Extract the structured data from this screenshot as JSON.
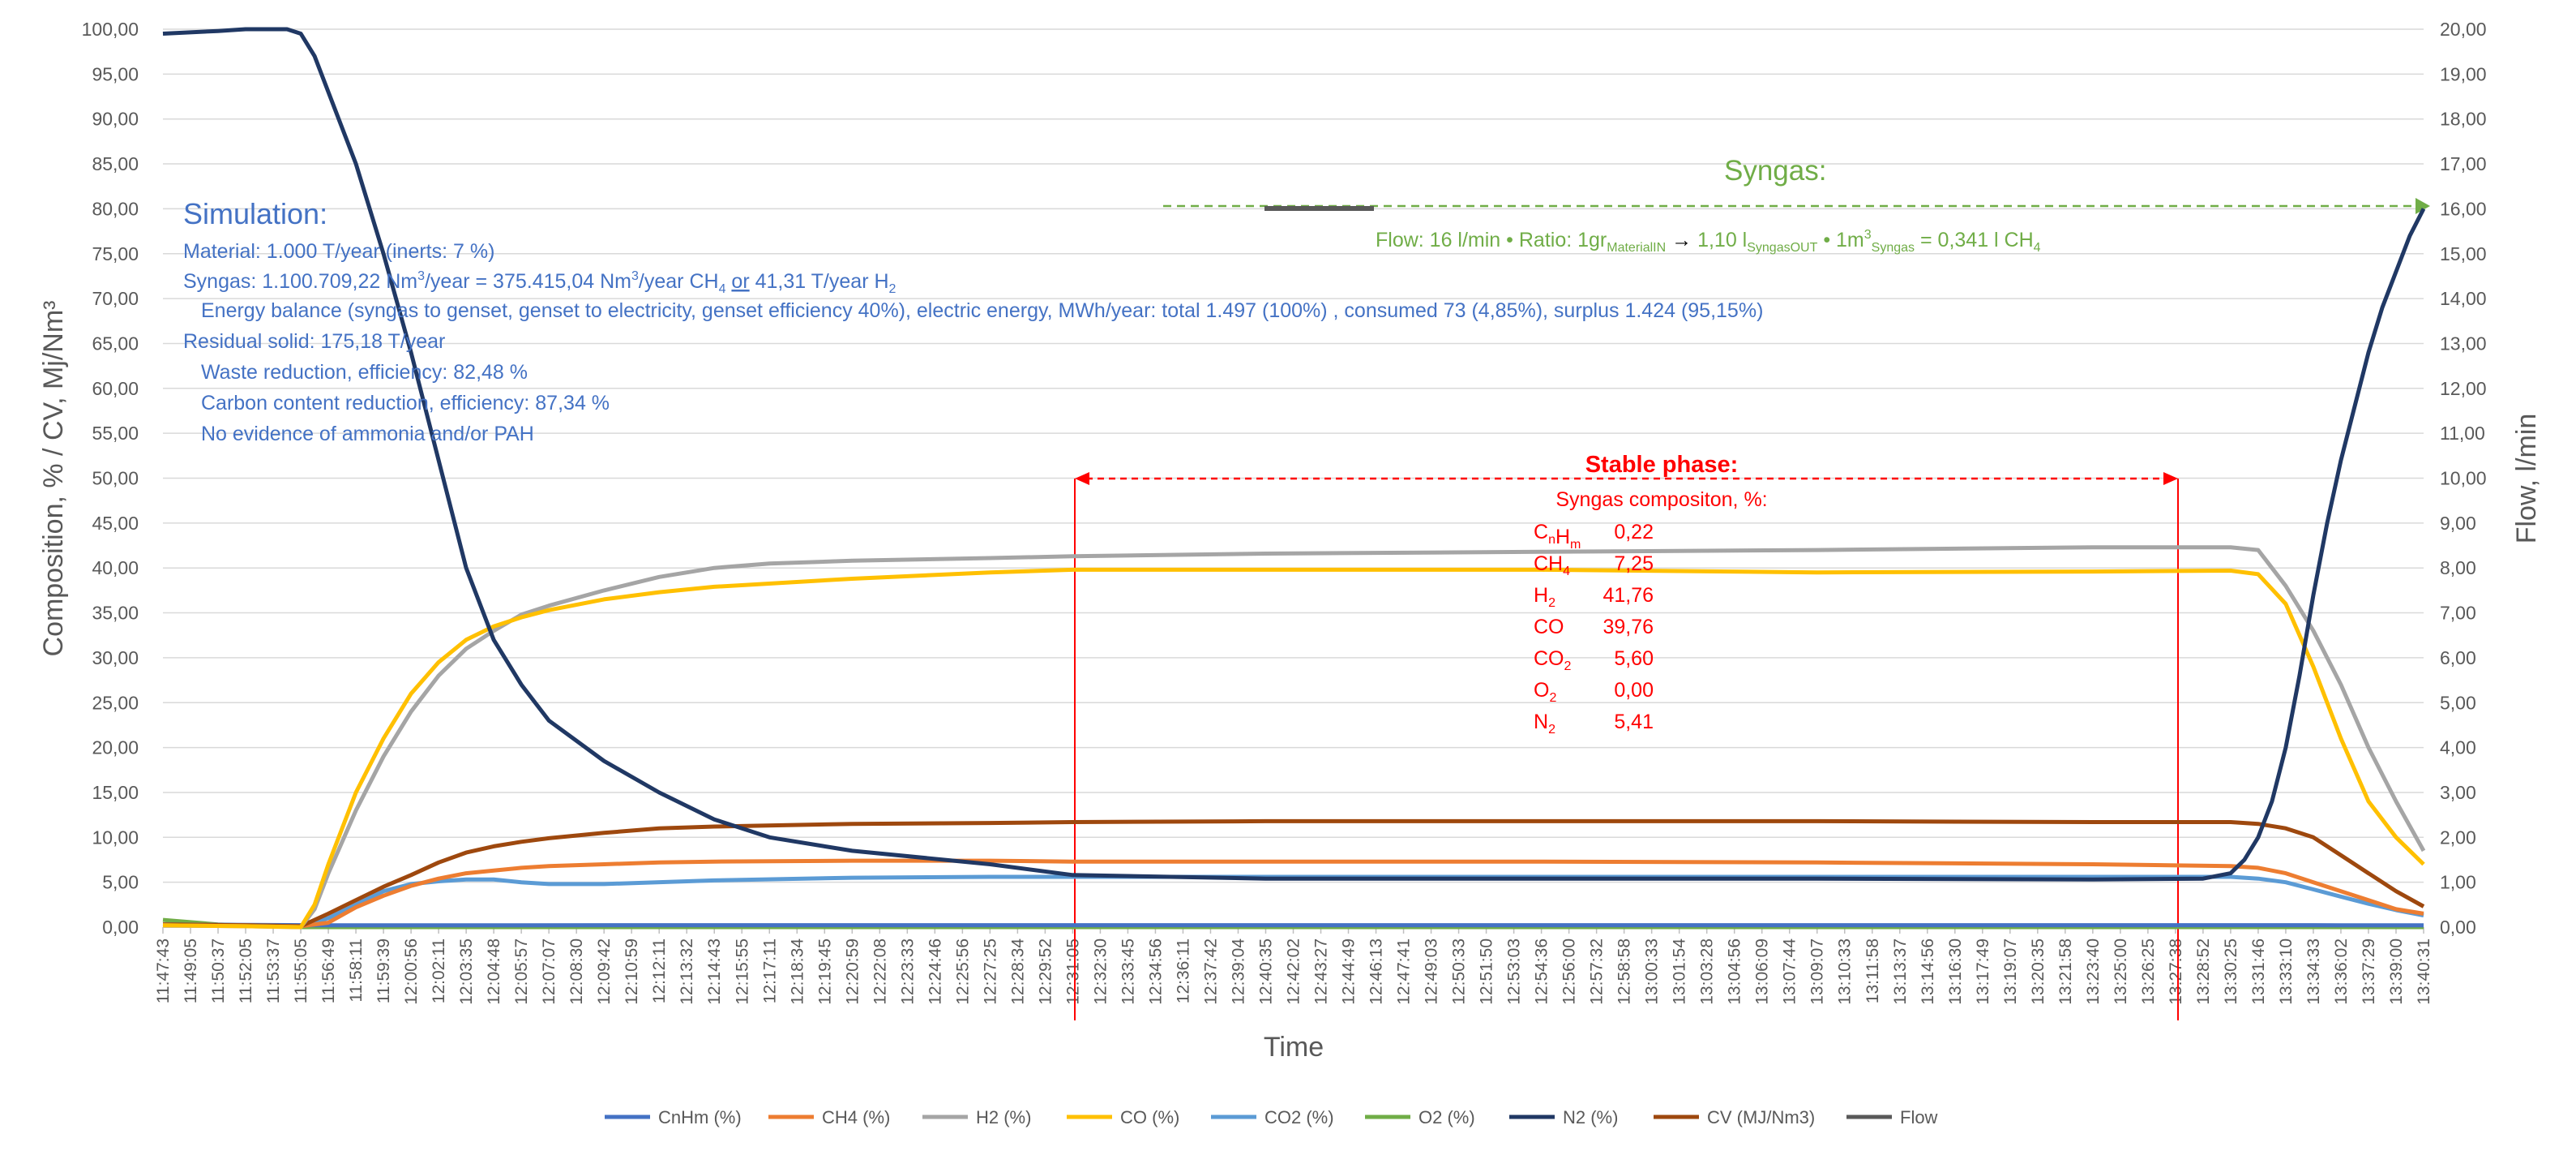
{
  "chart_data": {
    "type": "line",
    "y_axis_left": {
      "label": "Composition, % / CV, Mj/Nm³",
      "ylim": [
        0,
        100
      ],
      "ticks": [
        "0,00",
        "5,00",
        "10,00",
        "15,00",
        "20,00",
        "25,00",
        "30,00",
        "35,00",
        "40,00",
        "45,00",
        "50,00",
        "55,00",
        "60,00",
        "65,00",
        "70,00",
        "75,00",
        "80,00",
        "85,00",
        "90,00",
        "95,00",
        "100,00"
      ]
    },
    "y_axis_right": {
      "label": "Flow, l/min",
      "ylim": [
        0,
        20
      ],
      "ticks": [
        "0,00",
        "1,00",
        "2,00",
        "3,00",
        "4,00",
        "5,00",
        "6,00",
        "7,00",
        "8,00",
        "9,00",
        "10,00",
        "11,00",
        "12,00",
        "13,00",
        "14,00",
        "15,00",
        "16,00",
        "17,00",
        "18,00",
        "19,00",
        "20,00"
      ]
    },
    "x_axis": {
      "label": "Time",
      "ticks": [
        "11:47:43",
        "11:49:05",
        "11:50:37",
        "11:52:05",
        "11:53:37",
        "11:55:05",
        "11:56:49",
        "11:58:11",
        "11:59:39",
        "12:00:56",
        "12:02:11",
        "12:03:35",
        "12:04:48",
        "12:05:57",
        "12:07:07",
        "12:08:30",
        "12:09:42",
        "12:10:59",
        "12:12:11",
        "12:13:32",
        "12:14:43",
        "12:15:55",
        "12:17:11",
        "12:18:34",
        "12:19:45",
        "12:20:59",
        "12:22:08",
        "12:23:33",
        "12:24:46",
        "12:25:56",
        "12:27:25",
        "12:28:34",
        "12:29:52",
        "12:31:05",
        "12:32:30",
        "12:33:45",
        "12:34:56",
        "12:36:11",
        "12:37:42",
        "12:39:04",
        "12:40:35",
        "12:42:02",
        "12:43:27",
        "12:44:49",
        "12:46:13",
        "12:47:41",
        "12:49:03",
        "12:50:33",
        "12:51:50",
        "12:53:03",
        "12:54:36",
        "12:56:00",
        "12:57:32",
        "12:58:58",
        "13:00:33",
        "13:01:54",
        "13:03:28",
        "13:04:56",
        "13:06:09",
        "13:07:44",
        "13:09:07",
        "13:10:33",
        "13:11:58",
        "13:13:37",
        "13:14:56",
        "13:16:30",
        "13:17:49",
        "13:19:07",
        "13:20:35",
        "13:21:58",
        "13:23:40",
        "13:25:00",
        "13:26:25",
        "13:27:38",
        "13:28:52",
        "13:30:25",
        "13:31:46",
        "13:33:10",
        "13:34:33",
        "13:36:02",
        "13:37:29",
        "13:39:00",
        "13:40:31"
      ]
    },
    "series": [
      {
        "name": "CnHm (%)",
        "color": "#4472c4",
        "axis": "left",
        "x": [
          0,
          6,
          10,
          20,
          30,
          60,
          78,
          79,
          82
        ],
        "y": [
          0.3,
          0.2,
          0.2,
          0.22,
          0.22,
          0.22,
          0.22,
          0.2,
          0.2
        ]
      },
      {
        "name": "CH4 (%)",
        "color": "#ed7d31",
        "axis": "left",
        "x": [
          0,
          3,
          5,
          6,
          7,
          8,
          9,
          10,
          11,
          12,
          13,
          14,
          16,
          18,
          20,
          25,
          30,
          33,
          40,
          50,
          60,
          70,
          75,
          76,
          77,
          78,
          79,
          80,
          81,
          82
        ],
        "y": [
          0.3,
          0.2,
          0.1,
          0.5,
          2.2,
          3.5,
          4.6,
          5.4,
          6.0,
          6.3,
          6.6,
          6.8,
          7.0,
          7.2,
          7.3,
          7.4,
          7.4,
          7.3,
          7.3,
          7.3,
          7.2,
          7.0,
          6.8,
          6.6,
          6.0,
          5.0,
          4.0,
          3.0,
          2.0,
          1.5
        ]
      },
      {
        "name": "H2 (%)",
        "color": "#a5a5a5",
        "axis": "left",
        "x": [
          0,
          3,
          5,
          5.5,
          6,
          7,
          8,
          9,
          10,
          11,
          12,
          13,
          14,
          16,
          18,
          20,
          22,
          25,
          30,
          33,
          40,
          50,
          60,
          70,
          75,
          76,
          77,
          78,
          79,
          80,
          81,
          82
        ],
        "y": [
          0.2,
          0.1,
          0,
          2,
          6,
          13,
          19,
          24,
          28,
          31,
          33,
          34.8,
          35.8,
          37.5,
          39.0,
          40.0,
          40.5,
          40.8,
          41.1,
          41.3,
          41.6,
          41.8,
          42.0,
          42.3,
          42.3,
          42.0,
          38,
          33,
          27,
          20,
          14,
          8.5
        ]
      },
      {
        "name": "CO (%)",
        "color": "#ffc000",
        "axis": "left",
        "x": [
          0,
          3,
          5,
          5.5,
          6,
          7,
          8,
          9,
          10,
          11,
          12,
          13,
          14,
          16,
          18,
          20,
          25,
          30,
          33,
          40,
          50,
          60,
          70,
          75,
          76,
          77,
          78,
          79,
          80,
          81,
          82
        ],
        "y": [
          0.2,
          0.1,
          0,
          2.5,
          7,
          15,
          21,
          26,
          29.5,
          32,
          33.5,
          34.5,
          35.3,
          36.5,
          37.3,
          37.9,
          38.8,
          39.5,
          39.8,
          39.8,
          39.8,
          39.5,
          39.6,
          39.7,
          39.3,
          36,
          29,
          21,
          14,
          10,
          7
        ]
      },
      {
        "name": "CO2 (%)",
        "color": "#5b9bd5",
        "axis": "left",
        "x": [
          0,
          3,
          5,
          6,
          7,
          8,
          9,
          10,
          11,
          12,
          13,
          14,
          16,
          20,
          25,
          30,
          40,
          50,
          60,
          70,
          75,
          76,
          77,
          78,
          79,
          80,
          81,
          82
        ],
        "y": [
          0.3,
          0.2,
          0.1,
          1,
          2.5,
          4,
          4.8,
          5.1,
          5.3,
          5.3,
          5.0,
          4.8,
          4.8,
          5.2,
          5.5,
          5.6,
          5.6,
          5.6,
          5.6,
          5.6,
          5.6,
          5.4,
          5.0,
          4.2,
          3.4,
          2.6,
          1.9,
          1.3
        ]
      },
      {
        "name": "O2 (%)",
        "color": "#70ad47",
        "axis": "left",
        "x": [
          0,
          2,
          5,
          6,
          82
        ],
        "y": [
          0.8,
          0.3,
          0,
          0,
          0
        ]
      },
      {
        "name": "N2 (%)",
        "color": "#203864",
        "axis": "left",
        "x": [
          0,
          2,
          3,
          4,
          4.5,
          5,
          5.5,
          6,
          7,
          8,
          9,
          10,
          11,
          12,
          13,
          14,
          16,
          18,
          20,
          22,
          25,
          30,
          33,
          40,
          50,
          60,
          70,
          74,
          75,
          75.5,
          76,
          76.5,
          77,
          77.5,
          78,
          78.5,
          79,
          79.5,
          80,
          80.5,
          81,
          81.5,
          82
        ],
        "y": [
          99.5,
          99.8,
          100,
          100,
          100,
          99.5,
          97,
          93,
          85,
          75,
          64,
          52,
          40,
          32,
          27,
          23,
          18.5,
          15,
          12,
          10,
          8.5,
          7,
          5.8,
          5.4,
          5.4,
          5.4,
          5.3,
          5.4,
          6,
          7.5,
          10,
          14,
          20,
          28,
          37,
          45,
          52,
          58,
          64,
          69,
          73,
          77,
          80
        ]
      },
      {
        "name": "CV (MJ/Nm3)",
        "color": "#9e480e",
        "axis": "left",
        "x": [
          0,
          3,
          5,
          6,
          7,
          8,
          9,
          10,
          11,
          12,
          13,
          14,
          16,
          18,
          20,
          25,
          30,
          33,
          40,
          50,
          60,
          70,
          75,
          76,
          77,
          78,
          79,
          80,
          81,
          82
        ],
        "y": [
          0.3,
          0.2,
          0.1,
          1.5,
          3,
          4.5,
          5.8,
          7.2,
          8.3,
          9.0,
          9.5,
          9.9,
          10.5,
          11.0,
          11.2,
          11.5,
          11.6,
          11.7,
          11.8,
          11.8,
          11.8,
          11.7,
          11.7,
          11.5,
          11,
          10,
          8,
          6,
          4,
          2.3
        ]
      },
      {
        "name": "Flow",
        "color": "#595959",
        "axis": "right",
        "x": [],
        "y": []
      }
    ],
    "legend_position": "bottom",
    "grid": true
  },
  "annotations": {
    "simulation": {
      "title": "Simulation:",
      "line1": "Material: 1.000 T/year (inerts: 7 %)",
      "line2_a": "Syngas: 1.100.709,22 Nm",
      "line2_sup1": "3",
      "line2_b": "/year  = 375.415,04 Nm",
      "line2_sup2": "3",
      "line2_c": "/year CH",
      "line2_sub1": "4",
      "line2_or": "or",
      "line2_d": "41,31 T/year H",
      "line2_sub2": "2",
      "line3": "Energy balance (syngas to genset, genset to electricity, genset efficiency 40%), electric energy, MWh/year: total 1.497 (100%) , consumed 73 (4,85%), surplus 1.424 (95,15%)",
      "line4": "Residual solid: 175,18 T/year",
      "line5": "Waste reduction, efficiency: 82,48 %",
      "line6": "Carbon content reduction, efficiency: 87,34 %",
      "line7": "No evidence of ammonia and/or PAH"
    },
    "stable": {
      "title": "Stable phase:",
      "subtitle": "Syngas compositon, %:",
      "rows": [
        {
          "name": "C",
          "sub": "n",
          "name2": "H",
          "sub2": "m",
          "value": "0,22"
        },
        {
          "name": "CH",
          "sub": "4",
          "name2": "",
          "sub2": "",
          "value": "7,25"
        },
        {
          "name": "H",
          "sub": "2",
          "name2": "",
          "sub2": "",
          "value": "41,76"
        },
        {
          "name": "CO",
          "sub": "",
          "name2": "",
          "sub2": "",
          "value": "39,76"
        },
        {
          "name": "CO",
          "sub": "2",
          "name2": "",
          "sub2": "",
          "value": "5,60"
        },
        {
          "name": "O",
          "sub": "2",
          "name2": "",
          "sub2": "",
          "value": "0,00"
        },
        {
          "name": "N",
          "sub": "2",
          "name2": "",
          "sub2": "",
          "value": "5,41"
        }
      ]
    },
    "syngas": {
      "title": "Syngas:",
      "flow_a": "Flow: 16 l/min • Ratio: 1gr",
      "flow_sub1": "MaterialIN",
      "flow_arrow": "→",
      "flow_b": "1,10 l",
      "flow_sub2": "SyngasOUT",
      "flow_c": "• 1m",
      "flow_sup": "3",
      "flow_sub3": "Syngas",
      "flow_d": "= 0,341 l CH",
      "flow_sub4": "4"
    }
  }
}
